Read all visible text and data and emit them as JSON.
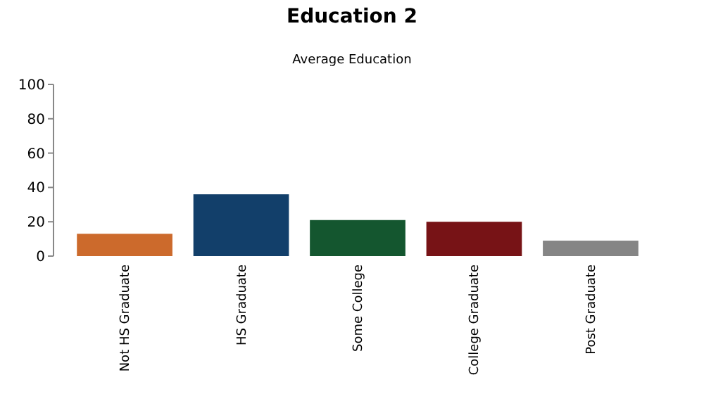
{
  "chart_data": {
    "type": "bar",
    "title": "Education 2",
    "subtitle": "Average Education",
    "categories": [
      "Not HS Graduate",
      "HS Graduate",
      "Some College",
      "College Graduate",
      "Post Graduate"
    ],
    "values": [
      13,
      36,
      21,
      20,
      9
    ],
    "colors": [
      "#cc6a2c",
      "#123f6a",
      "#14562f",
      "#771316",
      "#858585"
    ],
    "ylim": [
      0,
      100
    ],
    "yticks": [
      0,
      20,
      40,
      60,
      80,
      100
    ]
  }
}
